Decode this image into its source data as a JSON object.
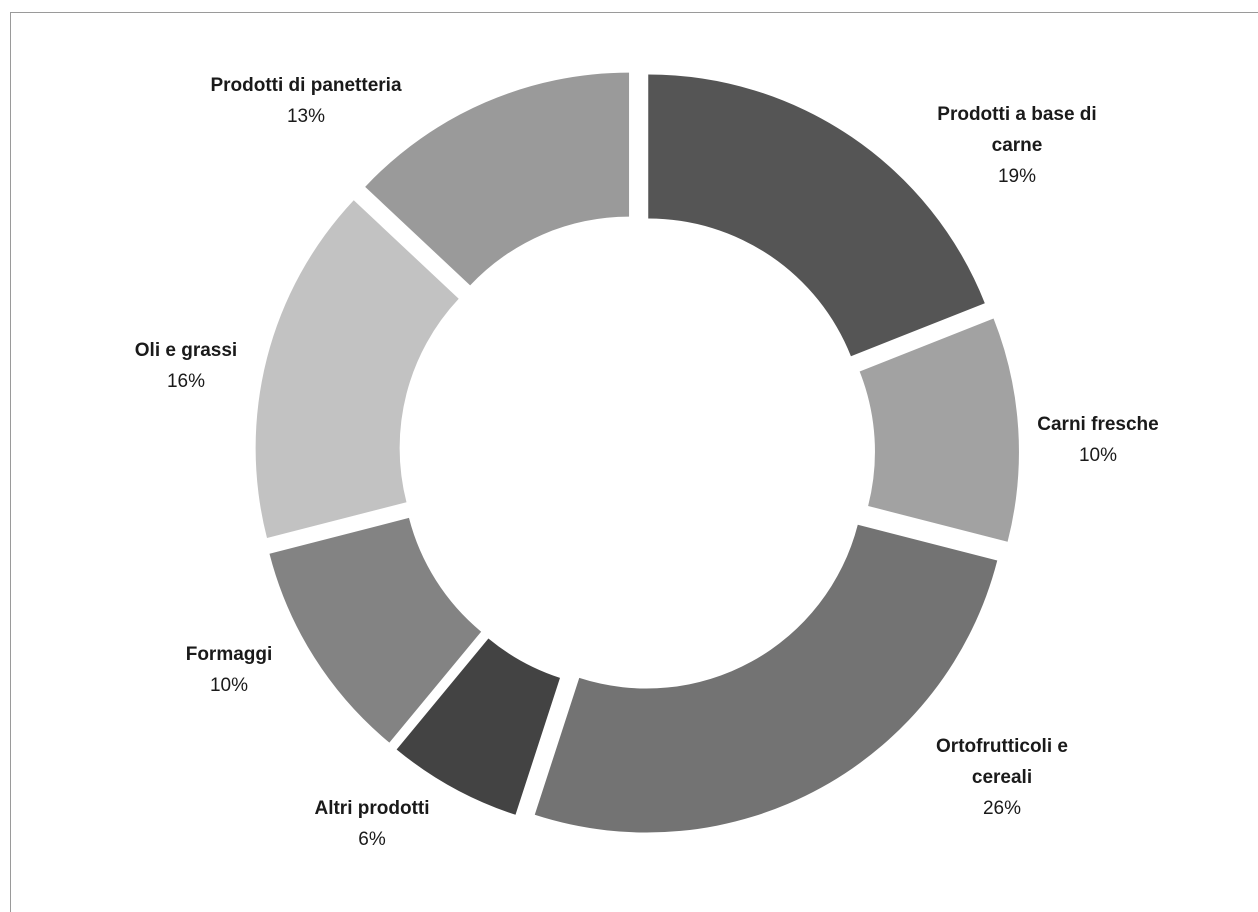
{
  "chart_data": {
    "type": "pie",
    "variant": "exploded-donut",
    "title": "",
    "start_angle_deg": 0,
    "direction": "clockwise",
    "slices": [
      {
        "label": [
          "Prodotti a base  di",
          "carne"
        ],
        "percent_label": "19%",
        "value": 19,
        "color": "#555555"
      },
      {
        "label": [
          "Carni fresche"
        ],
        "percent_label": "10%",
        "value": 10,
        "color": "#a2a2a2"
      },
      {
        "label": [
          "Ortofrutticoli e",
          "cereali"
        ],
        "percent_label": "26%",
        "value": 26,
        "color": "#737373"
      },
      {
        "label": [
          "Altri prodotti"
        ],
        "percent_label": "6%",
        "value": 6,
        "color": "#434343"
      },
      {
        "label": [
          "Formaggi"
        ],
        "percent_label": "10%",
        "value": 10,
        "color": "#838383"
      },
      {
        "label": [
          "Oli e grassi"
        ],
        "percent_label": "16%",
        "value": 16,
        "color": "#c2c2c2"
      },
      {
        "label": [
          "Prodotti di panetteria"
        ],
        "percent_label": "13%",
        "value": 13,
        "color": "#9a9a9a"
      }
    ]
  }
}
